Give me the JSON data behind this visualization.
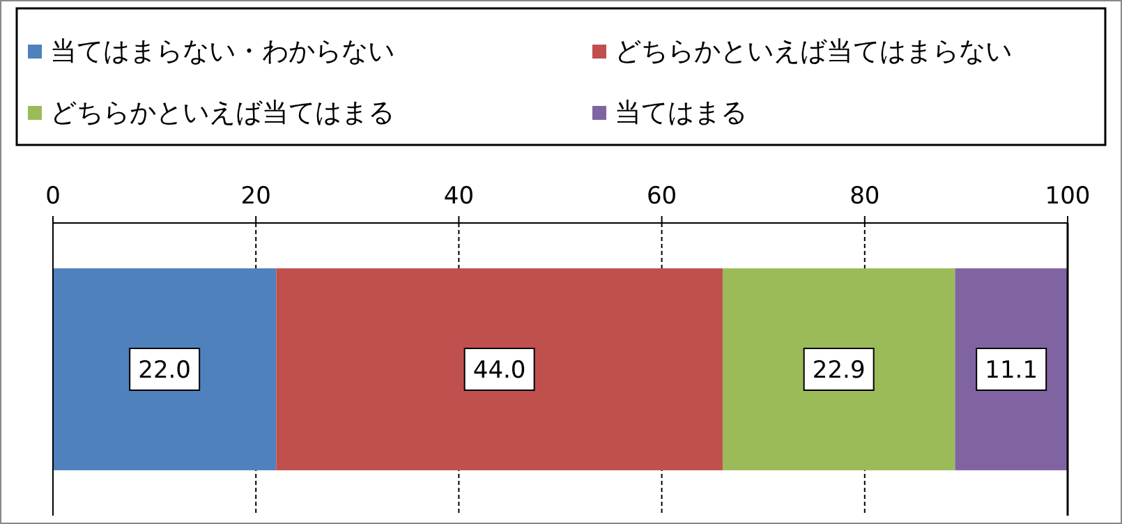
{
  "chart_data": {
    "type": "bar",
    "orientation": "horizontal",
    "stacked": true,
    "categories": [
      null
    ],
    "series": [
      {
        "name": "当てはまらない・わからない",
        "color": "#4f81bd",
        "values": [
          22.0
        ],
        "value_labels": [
          "22.0"
        ]
      },
      {
        "name": "どちらかといえば当てはまらない",
        "color": "#c0504d",
        "values": [
          44.0
        ],
        "value_labels": [
          "44.0"
        ]
      },
      {
        "name": "どちらかといえば当てはまる",
        "color": "#9bbb59",
        "values": [
          22.9
        ],
        "value_labels": [
          "22.9"
        ]
      },
      {
        "name": "当てはまる",
        "color": "#8064a2",
        "values": [
          11.1
        ],
        "value_labels": [
          "11.1"
        ]
      }
    ],
    "xlim": [
      0,
      100
    ],
    "xticks": [
      0,
      20,
      40,
      60,
      80,
      100
    ],
    "grid": "x",
    "legend": "top"
  }
}
